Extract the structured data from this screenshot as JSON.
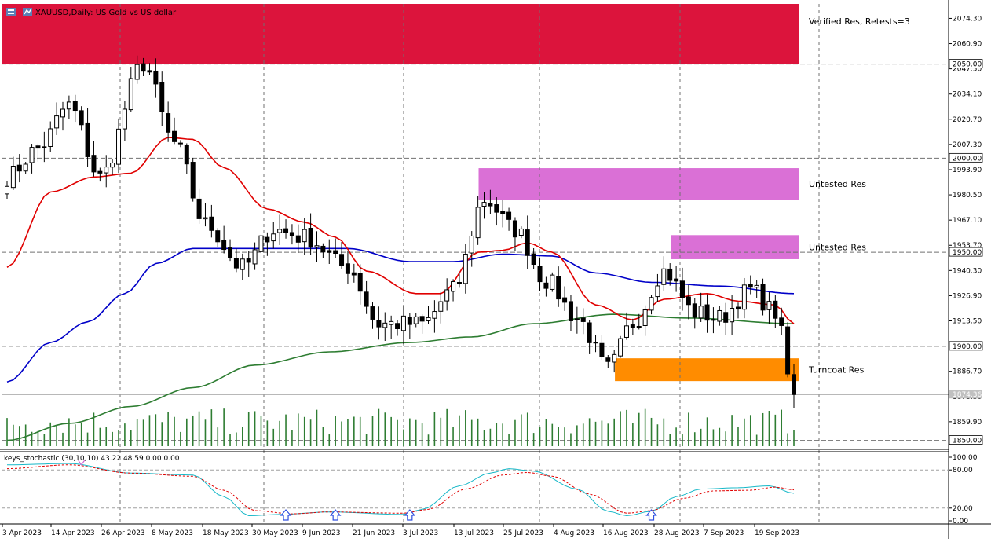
{
  "header": {
    "symbol": "XAUUSD",
    "title_rest": ",Daily: US Gold vs US dollar"
  },
  "colors": {
    "background": "#ffffff",
    "grid": "#707070",
    "axis": "#000000",
    "bull_candle": "#ffffff",
    "bear_candle": "#000000",
    "ma_fast": "#e00000",
    "ma_mid": "#0000c8",
    "ma_slow": "#2e7d32",
    "volume": "#2e7d32",
    "zone_verified": "#dc143c",
    "zone_untested": "#da70d6",
    "zone_turncoat": "#ff8c00",
    "stoch_main": "#17b8c8",
    "stoch_signal": "#e00000",
    "arrow": "#3050e0"
  },
  "zone_labels": [
    "Verified Res, Retests=3",
    "Untested Res",
    "Untested Res",
    "Turncoat Res"
  ],
  "indicator": {
    "label": "keys_stochastic (30,10,10) 43.22 48.59 0.00 0.00"
  },
  "chart_data": [
    {
      "type": "candlestick",
      "title": "XAUUSD,Daily: US Gold vs US dollar",
      "xlabel": "",
      "ylabel": "",
      "ylim": [
        1846.9,
        2082.0
      ],
      "y_ticks": [
        2074.3,
        2060.9,
        2047.5,
        2034.1,
        2020.7,
        2007.3,
        1993.9,
        1980.5,
        1967.1,
        1953.7,
        1940.3,
        1926.9,
        1913.5,
        1900.1,
        1886.7,
        1873.3,
        1859.9,
        1850.0
      ],
      "y_tick_labels": [
        "2074.30",
        "2060.90",
        "2047.50",
        "2034.10",
        "2020.70",
        "2007.30",
        "1993.90",
        "1980.50",
        "1967.10",
        "1953.70",
        "1940.30",
        "1926.90",
        "1913.50",
        "1900.10",
        "1886.70",
        "1873.30",
        "1859.90",
        "1850.00"
      ],
      "horizontal_levels": [
        {
          "value": 2050.0,
          "label": "2050.00"
        },
        {
          "value": 2000.0,
          "label": "2000.00"
        },
        {
          "value": 1950.0,
          "label": "1950.00"
        },
        {
          "value": 1900.0,
          "label": "1900.00"
        },
        {
          "value": 1850.0,
          "label": "1850.00"
        }
      ],
      "current_price": {
        "value": 1874.36,
        "label": "1874.36"
      },
      "x_tick_labels": [
        "3 Apr 2023",
        "14 Apr 2023",
        "26 Apr 2023",
        "8 May 2023",
        "18 May 2023",
        "30 May 2023",
        "9 Jun 2023",
        "21 Jun 2023",
        "3 Jul 2023",
        "13 Jul 2023",
        "25 Jul 2023",
        "4 Aug 2023",
        "16 Aug 2023",
        "28 Aug 2023",
        "7 Sep 2023",
        "19 Sep 2023"
      ],
      "candle_anchors": [
        {
          "bar": 0,
          "close": 1990
        },
        {
          "bar": 5,
          "close": 2005
        },
        {
          "bar": 10,
          "close": 2028
        },
        {
          "bar": 15,
          "close": 1990
        },
        {
          "bar": 22,
          "close": 2050
        },
        {
          "bar": 27,
          "close": 2008
        },
        {
          "bar": 32,
          "close": 1965
        },
        {
          "bar": 38,
          "close": 1942
        },
        {
          "bar": 43,
          "close": 1962
        },
        {
          "bar": 48,
          "close": 1958
        },
        {
          "bar": 55,
          "close": 1942
        },
        {
          "bar": 60,
          "close": 1912
        },
        {
          "bar": 67,
          "close": 1912
        },
        {
          "bar": 72,
          "close": 1930
        },
        {
          "bar": 77,
          "close": 1978
        },
        {
          "bar": 82,
          "close": 1962
        },
        {
          "bar": 87,
          "close": 1935
        },
        {
          "bar": 92,
          "close": 1915
        },
        {
          "bar": 97,
          "close": 1888
        },
        {
          "bar": 101,
          "close": 1912
        },
        {
          "bar": 106,
          "close": 1940
        },
        {
          "bar": 111,
          "close": 1918
        },
        {
          "bar": 115,
          "close": 1915
        },
        {
          "bar": 120,
          "close": 1930
        },
        {
          "bar": 124,
          "close": 1918
        },
        {
          "bar": 127,
          "close": 1873
        }
      ],
      "ma_fast_anchors": [
        {
          "bar": 0,
          "value": 1942
        },
        {
          "bar": 7,
          "value": 1982
        },
        {
          "bar": 14,
          "value": 1990
        },
        {
          "bar": 20,
          "value": 1992
        },
        {
          "bar": 26,
          "value": 2011
        },
        {
          "bar": 30,
          "value": 2010
        },
        {
          "bar": 35,
          "value": 1995
        },
        {
          "bar": 42,
          "value": 1973
        },
        {
          "bar": 48,
          "value": 1966
        },
        {
          "bar": 53,
          "value": 1958
        },
        {
          "bar": 58,
          "value": 1940
        },
        {
          "bar": 66,
          "value": 1928
        },
        {
          "bar": 70,
          "value": 1928
        },
        {
          "bar": 76,
          "value": 1950
        },
        {
          "bar": 80,
          "value": 1951
        },
        {
          "bar": 84,
          "value": 1955
        },
        {
          "bar": 88,
          "value": 1950
        },
        {
          "bar": 95,
          "value": 1922
        },
        {
          "bar": 101,
          "value": 1914
        },
        {
          "bar": 106,
          "value": 1925
        },
        {
          "bar": 113,
          "value": 1928
        },
        {
          "bar": 118,
          "value": 1924
        },
        {
          "bar": 124,
          "value": 1922
        },
        {
          "bar": 127,
          "value": 1912
        }
      ],
      "ma_mid_anchors": [
        {
          "bar": 0,
          "value": 1881
        },
        {
          "bar": 7,
          "value": 1902
        },
        {
          "bar": 13,
          "value": 1913
        },
        {
          "bar": 19,
          "value": 1928
        },
        {
          "bar": 24,
          "value": 1944
        },
        {
          "bar": 30,
          "value": 1952
        },
        {
          "bar": 40,
          "value": 1952
        },
        {
          "bar": 55,
          "value": 1952
        },
        {
          "bar": 65,
          "value": 1945
        },
        {
          "bar": 72,
          "value": 1945
        },
        {
          "bar": 80,
          "value": 1949
        },
        {
          "bar": 88,
          "value": 1948
        },
        {
          "bar": 95,
          "value": 1939
        },
        {
          "bar": 104,
          "value": 1934
        },
        {
          "bar": 115,
          "value": 1932
        },
        {
          "bar": 127,
          "value": 1928
        }
      ],
      "ma_slow_anchors": [
        {
          "bar": 0,
          "value": 1850
        },
        {
          "bar": 10,
          "value": 1859
        },
        {
          "bar": 20,
          "value": 1868
        },
        {
          "bar": 30,
          "value": 1878
        },
        {
          "bar": 40,
          "value": 1890
        },
        {
          "bar": 52,
          "value": 1897
        },
        {
          "bar": 65,
          "value": 1902
        },
        {
          "bar": 75,
          "value": 1905
        },
        {
          "bar": 85,
          "value": 1912
        },
        {
          "bar": 98,
          "value": 1917
        },
        {
          "bar": 110,
          "value": 1915
        },
        {
          "bar": 127,
          "value": 1912
        }
      ],
      "zones": [
        {
          "label": "Verified Res, Retests=3",
          "from_bar": 0,
          "to_bar": 127,
          "top": 2082,
          "bottom": 2050,
          "color": "#dc143c"
        },
        {
          "label": "Untested Res",
          "from_bar": 77,
          "to_bar": 127,
          "top": 1994.7,
          "bottom": 1978.0,
          "color": "#da70d6"
        },
        {
          "label": "Untested Res",
          "from_bar": 108,
          "to_bar": 127,
          "top": 1959.1,
          "bottom": 1946.3,
          "color": "#da70d6"
        },
        {
          "label": "Turncoat Res",
          "from_bar": 99,
          "to_bar": 127,
          "top": 1893.6,
          "bottom": 1881.5,
          "color": "#ff8c00"
        }
      ]
    },
    {
      "type": "line",
      "title": "keys_stochastic (30,10,10) 43.22 48.59 0.00 0.00",
      "ylim": [
        0,
        100
      ],
      "y_ticks": [
        100,
        80,
        20,
        0
      ],
      "y_tick_labels": [
        "100.00",
        "80.00",
        "20.00",
        "0.00"
      ],
      "levels": [
        80,
        20
      ],
      "series": [
        {
          "name": "main",
          "anchors": [
            {
              "bar": 0,
              "value": 88
            },
            {
              "bar": 10,
              "value": 90
            },
            {
              "bar": 20,
              "value": 75
            },
            {
              "bar": 30,
              "value": 72
            },
            {
              "bar": 35,
              "value": 38
            },
            {
              "bar": 39,
              "value": 8
            },
            {
              "bar": 44,
              "value": 10
            },
            {
              "bar": 52,
              "value": 14
            },
            {
              "bar": 64,
              "value": 10
            },
            {
              "bar": 67,
              "value": 18
            },
            {
              "bar": 73,
              "value": 55
            },
            {
              "bar": 78,
              "value": 75
            },
            {
              "bar": 81,
              "value": 82
            },
            {
              "bar": 85,
              "value": 78
            },
            {
              "bar": 92,
              "value": 50
            },
            {
              "bar": 97,
              "value": 15
            },
            {
              "bar": 100,
              "value": 8
            },
            {
              "bar": 104,
              "value": 15
            },
            {
              "bar": 108,
              "value": 38
            },
            {
              "bar": 112,
              "value": 50
            },
            {
              "bar": 118,
              "value": 52
            },
            {
              "bar": 123,
              "value": 55
            },
            {
              "bar": 127,
              "value": 43.22
            }
          ]
        },
        {
          "name": "signal",
          "anchors": [
            {
              "bar": 0,
              "value": 82
            },
            {
              "bar": 10,
              "value": 88
            },
            {
              "bar": 20,
              "value": 75
            },
            {
              "bar": 30,
              "value": 70
            },
            {
              "bar": 35,
              "value": 48
            },
            {
              "bar": 40,
              "value": 16
            },
            {
              "bar": 46,
              "value": 11
            },
            {
              "bar": 52,
              "value": 14
            },
            {
              "bar": 64,
              "value": 12
            },
            {
              "bar": 68,
              "value": 18
            },
            {
              "bar": 74,
              "value": 50
            },
            {
              "bar": 80,
              "value": 72
            },
            {
              "bar": 84,
              "value": 76
            },
            {
              "bar": 88,
              "value": 70
            },
            {
              "bar": 94,
              "value": 42
            },
            {
              "bar": 100,
              "value": 12
            },
            {
              "bar": 104,
              "value": 16
            },
            {
              "bar": 109,
              "value": 35
            },
            {
              "bar": 114,
              "value": 47
            },
            {
              "bar": 120,
              "value": 48
            },
            {
              "bar": 124,
              "value": 53
            },
            {
              "bar": 127,
              "value": 48.59
            }
          ]
        }
      ],
      "arrows_at_bars": [
        45,
        53,
        65,
        104
      ]
    }
  ]
}
